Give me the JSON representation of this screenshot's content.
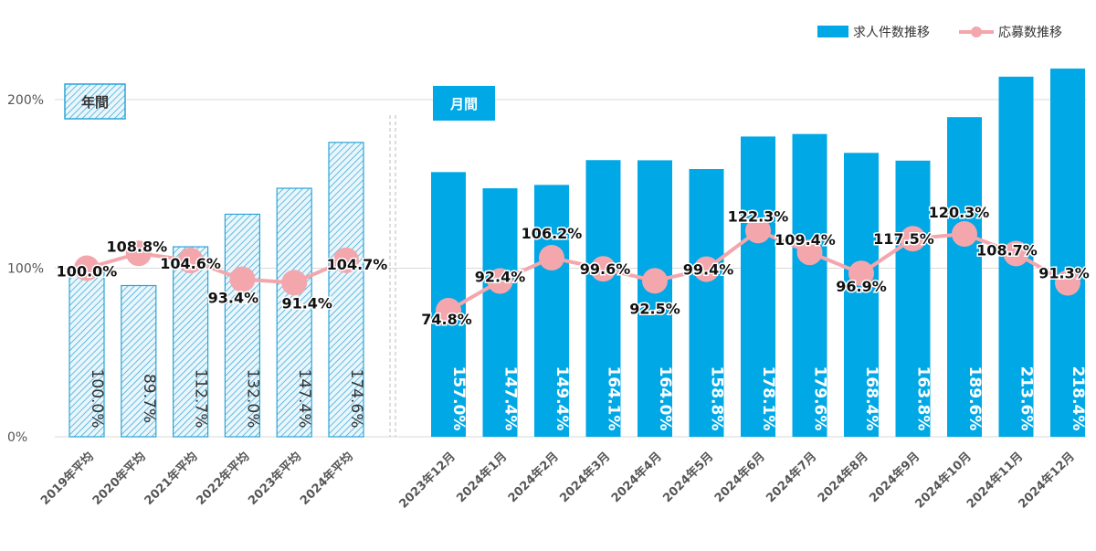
{
  "chart_data": {
    "type": "bar",
    "legend": {
      "placement": "top-right",
      "bar_series": "求人件数推移",
      "line_series": "応募数推移"
    },
    "y_axis": {
      "ticks": [
        {
          "value": 0,
          "label": "0%"
        },
        {
          "value": 100,
          "label": "100%"
        },
        {
          "value": 200,
          "label": "200%"
        }
      ],
      "ylim": [
        0,
        230
      ]
    },
    "panels": [
      {
        "id": "annual",
        "label": "年間",
        "style": "hatched",
        "categories": [
          "2019年平均",
          "2020年平均",
          "2021年平均",
          "2022年平均",
          "2023年平均",
          "2024年平均"
        ],
        "bar_values": [
          100.0,
          89.7,
          112.7,
          132.0,
          147.4,
          174.6
        ],
        "bar_labels": [
          "100.0%",
          "89.7%",
          "112.7%",
          "132.0%",
          "147.4%",
          "174.6%"
        ],
        "line_values": [
          100.0,
          108.8,
          104.6,
          93.4,
          91.4,
          104.7
        ],
        "line_labels": [
          "100.0%",
          "108.8%",
          "104.6%",
          "93.4%",
          "91.4%",
          "104.7%"
        ]
      },
      {
        "id": "monthly",
        "label": "月間",
        "style": "solid",
        "categories": [
          "2023年12月",
          "2024年1月",
          "2024年2月",
          "2024年3月",
          "2024年4月",
          "2024年5月",
          "2024年6月",
          "2024年7月",
          "2024年8月",
          "2024年9月",
          "2024年10月",
          "2024年11月",
          "2024年12月"
        ],
        "bar_values": [
          157.0,
          147.4,
          149.4,
          164.1,
          164.0,
          158.8,
          178.1,
          179.6,
          168.4,
          163.8,
          189.6,
          213.6,
          218.4
        ],
        "bar_labels": [
          "157.0%",
          "147.4%",
          "149.4%",
          "164.1%",
          "164.0%",
          "158.8%",
          "178.1%",
          "179.6%",
          "168.4%",
          "163.8%",
          "189.6%",
          "213.6%",
          "218.4%"
        ],
        "line_values": [
          74.8,
          92.4,
          106.2,
          99.6,
          92.5,
          99.4,
          122.3,
          109.4,
          96.9,
          117.5,
          120.3,
          108.7,
          91.3
        ],
        "line_labels": [
          "74.8%",
          "92.4%",
          "106.2%",
          "99.6%",
          "92.5%",
          "99.4%",
          "122.3%",
          "109.4%",
          "96.9%",
          "117.5%",
          "120.3%",
          "108.7%",
          "91.3%"
        ]
      }
    ],
    "colors": {
      "bar": "#00a8e6",
      "bar_hatch_line": "#2aa5d6",
      "bar_hatch_bg": "#eaf6fc",
      "line": "#f4a6ad",
      "gridline": "#d9d9d9",
      "tick_text": "#555555",
      "bar_label_text": "#ffffff",
      "line_label_text": "#111111",
      "hatched_bar_label_text": "#333333"
    }
  }
}
